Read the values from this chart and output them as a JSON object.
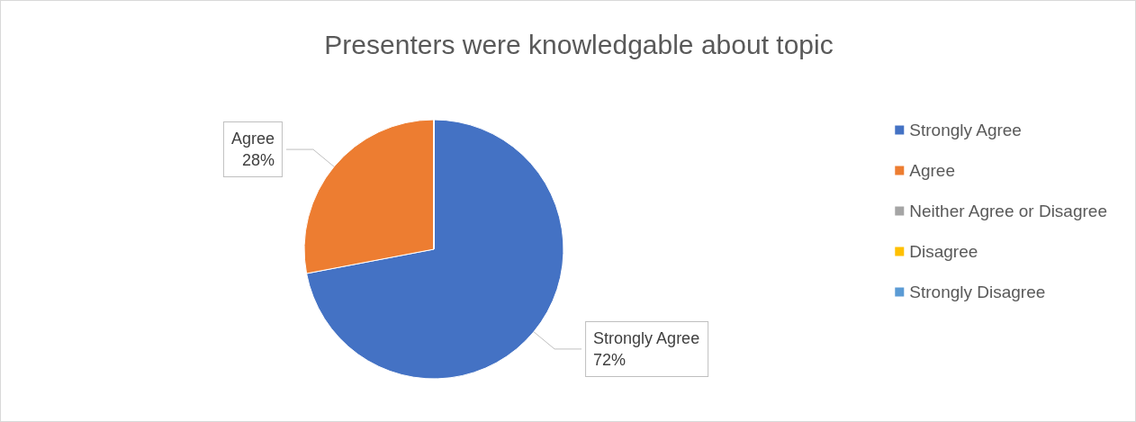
{
  "chart_data": {
    "type": "pie",
    "title": "Presenters were knowledgable about topic",
    "categories": [
      "Strongly Agree",
      "Agree",
      "Neither Agree or Disagree",
      "Disagree",
      "Strongly Disagree"
    ],
    "values": [
      72,
      28,
      0,
      0,
      0
    ],
    "colors": [
      "#4472c4",
      "#ed7d31",
      "#a5a5a5",
      "#ffc000",
      "#5b9bd5"
    ],
    "value_labels": [
      "72%",
      "28%",
      null,
      null,
      null
    ],
    "legend": "right"
  }
}
